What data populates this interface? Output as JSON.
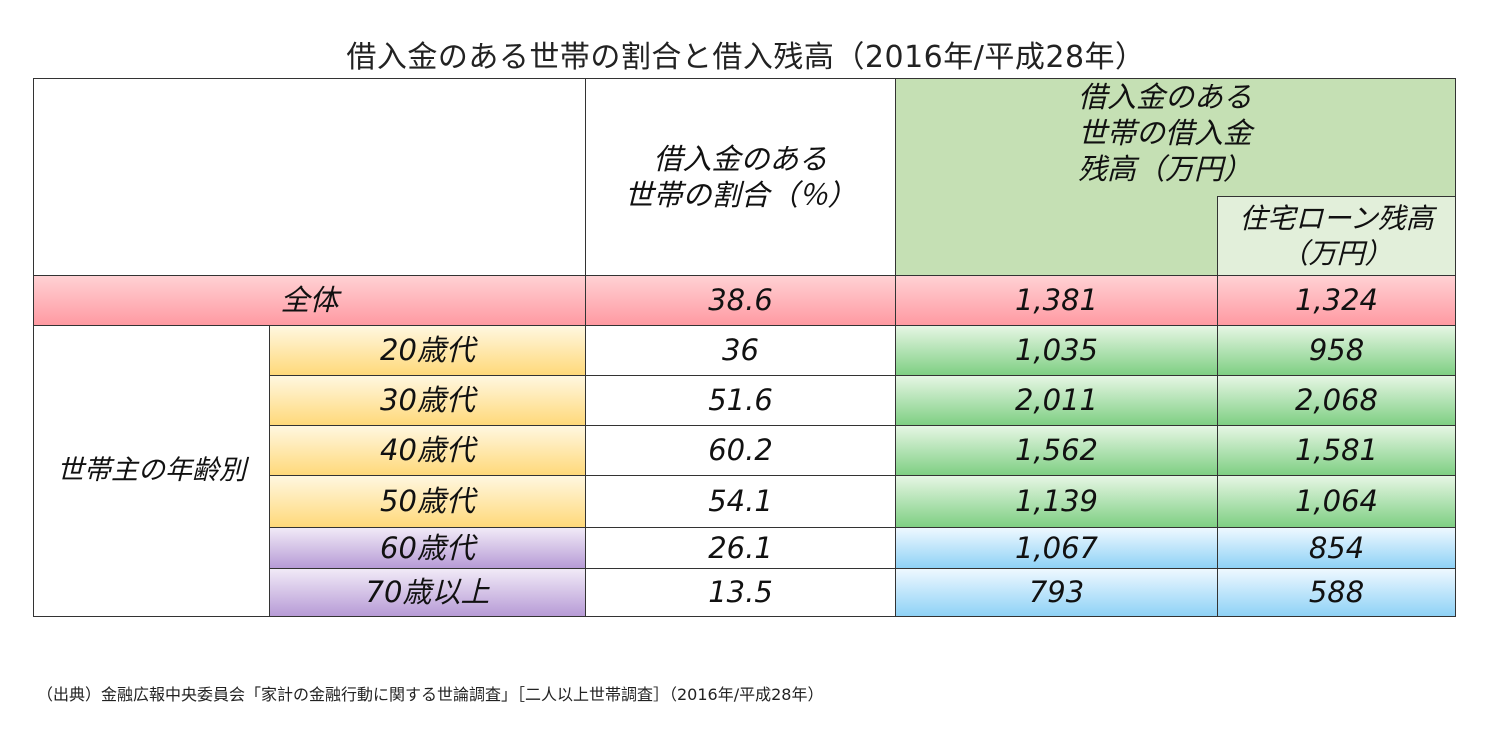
{
  "title": "借入金のある世帯の割合と借入残高（2016年/平成28年）",
  "chart_data": {
    "type": "table",
    "header": {
      "ratio_line1": "借入金のある",
      "ratio_line2": "世帯の割合（％）",
      "balance_line1": "借入金のある",
      "balance_line2": "世帯の借入金",
      "balance_line3": "残高（万円）",
      "housing_line1": "住宅ローン残高",
      "housing_line2": "（万円）"
    },
    "group_label": "世帯主の年齢別",
    "total": {
      "label": "全体",
      "ratio": "38.6",
      "balance": "1,381",
      "housing": "1,324"
    },
    "rows": [
      {
        "label": "20歳代",
        "ratio": "36",
        "balance": "1,035",
        "housing": "958"
      },
      {
        "label": "30歳代",
        "ratio": "51.6",
        "balance": "2,011",
        "housing": "2,068"
      },
      {
        "label": "40歳代",
        "ratio": "60.2",
        "balance": "1,562",
        "housing": "1,581"
      },
      {
        "label": "50歳代",
        "ratio": "54.1",
        "balance": "1,139",
        "housing": "1,064"
      },
      {
        "label": "60歳代",
        "ratio": "26.1",
        "balance": "1,067",
        "housing": "854"
      },
      {
        "label": "70歳以上",
        "ratio": "13.5",
        "balance": "793",
        "housing": "588"
      }
    ]
  },
  "source": "（出典）金融広報中央委員会「家計の金融行動に関する世論調査」［二人以上世帯調査］（2016年/平成28年）"
}
